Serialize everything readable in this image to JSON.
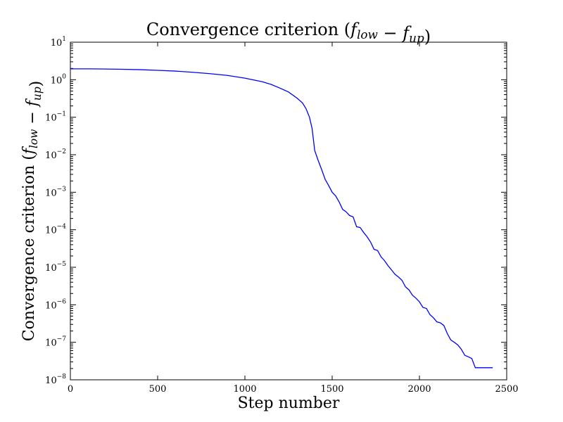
{
  "chart_data": {
    "type": "line",
    "title": "Convergence criterion (f_low − f_up)",
    "xlabel": "Step number",
    "ylabel": "Convergence criterion (f_low − f_up)",
    "xlim": [
      0,
      2500
    ],
    "ylim": [
      1e-08,
      10
    ],
    "yscale": "log",
    "grid": false,
    "x_ticks": [
      0,
      500,
      1000,
      1500,
      2000,
      2500
    ],
    "x_tick_labels": [
      "0",
      "500",
      "1000",
      "1500",
      "2000",
      "2500"
    ],
    "y_tick_exponents": [
      1,
      0,
      -1,
      -2,
      -3,
      -4,
      -5,
      -6,
      -7,
      -8
    ],
    "y_tick_base": "10",
    "series": [
      {
        "color": "#0000ff",
        "x": [
          0,
          100,
          200,
          300,
          400,
          500,
          600,
          700,
          800,
          900,
          1000,
          1100,
          1150,
          1200,
          1250,
          1300,
          1330,
          1350,
          1370,
          1385,
          1400,
          1420,
          1440,
          1460,
          1480,
          1500,
          1520,
          1540,
          1560,
          1580,
          1600,
          1620,
          1640,
          1660,
          1680,
          1700,
          1720,
          1740,
          1760,
          1780,
          1800,
          1820,
          1840,
          1860,
          1880,
          1900,
          1920,
          1940,
          1960,
          1980,
          2000,
          2020,
          2040,
          2060,
          2080,
          2100,
          2120,
          2140,
          2160,
          2180,
          2200,
          2220,
          2240,
          2260,
          2280,
          2300,
          2320,
          2340,
          2360,
          2380,
          2400,
          2420
        ],
        "y": [
          1.95,
          1.95,
          1.93,
          1.9,
          1.85,
          1.78,
          1.7,
          1.58,
          1.45,
          1.3,
          1.1,
          0.88,
          0.75,
          0.6,
          0.47,
          0.32,
          0.24,
          0.17,
          0.1,
          0.05,
          0.013,
          0.007,
          0.004,
          0.0022,
          0.0015,
          0.001,
          0.0008,
          0.00055,
          0.00035,
          0.0003,
          0.00024,
          0.00022,
          0.00012,
          0.000115,
          8.5e-05,
          6.5e-05,
          4.7e-05,
          3e-05,
          2.8e-05,
          1.9e-05,
          1.5e-05,
          1.1e-05,
          8.5e-06,
          6.5e-06,
          5.5e-06,
          4.5e-06,
          3e-06,
          2.5e-06,
          1.8e-06,
          1.5e-06,
          1.2e-06,
          8.5e-07,
          8e-07,
          5.5e-07,
          4.5e-07,
          3.5e-07,
          3.3e-07,
          2.8e-07,
          1.7e-07,
          1.15e-07,
          1e-07,
          8.5e-08,
          6.5e-08,
          4.5e-08,
          4.1e-08,
          3.7e-08,
          2.1e-08,
          2.1e-08,
          2.1e-08,
          2.1e-08,
          2.1e-08,
          2.1e-08
        ]
      }
    ]
  }
}
